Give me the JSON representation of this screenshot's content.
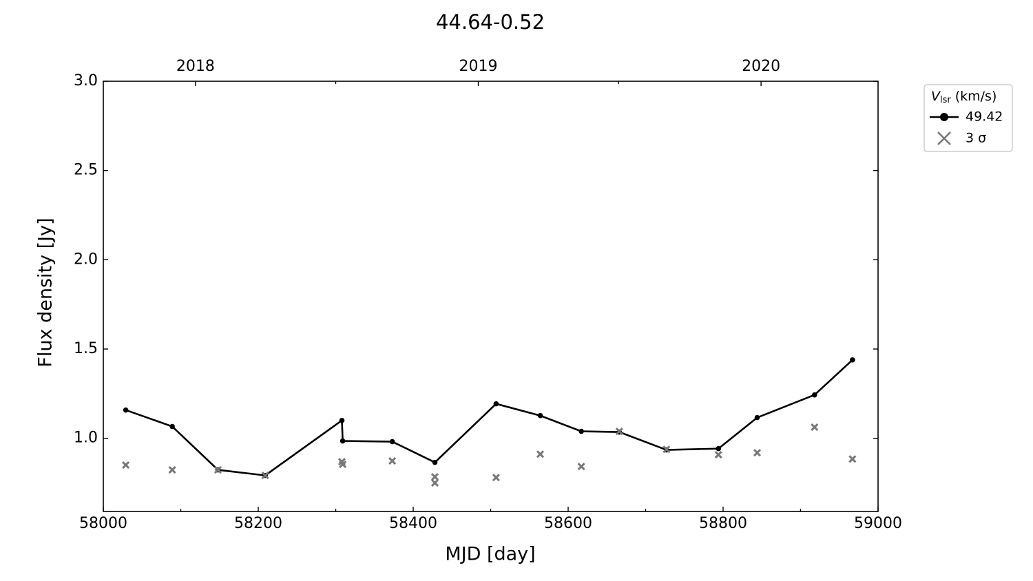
{
  "chart_data": {
    "type": "line",
    "title": "44.64-0.52",
    "xlabel": "MJD [day]",
    "ylabel": "Flux density [Jy]",
    "xlim": [
      58000,
      59000
    ],
    "xticks": [
      58000,
      58200,
      58400,
      58600,
      58800,
      59000
    ],
    "xminor_ticks": [
      58100,
      58300,
      58500,
      58700,
      58900
    ],
    "ylim": [
      0.59,
      3.0
    ],
    "yticks": [
      {
        "value": 1.0,
        "label": "1.0"
      },
      {
        "value": 1.5,
        "label": "1.5"
      },
      {
        "value": 2.0,
        "label": "2.0"
      },
      {
        "value": 2.5,
        "label": "2.5"
      },
      {
        "value": 3.0,
        "label": "3.0"
      }
    ],
    "x2ticks": [
      {
        "value": 58119,
        "label": "2018"
      },
      {
        "value": 58484,
        "label": "2019"
      },
      {
        "value": 58849,
        "label": "2020"
      }
    ],
    "x2minor_ticks": [
      58300,
      58665
    ],
    "legend_title": {
      "symbol": "V",
      "subscript": "lsr",
      "unit": "(km/s)"
    },
    "legend_position": "outside upper right",
    "series": [
      {
        "name": "49.42",
        "type": "line",
        "color": "#000000",
        "x": [
          58029,
          58089,
          58148,
          58209,
          58308,
          58309,
          58373,
          58428,
          58507,
          58564,
          58617,
          58666,
          58727,
          58794,
          58844,
          58918,
          58967
        ],
        "values": [
          1.158,
          1.066,
          0.823,
          0.792,
          1.1,
          0.985,
          0.981,
          0.865,
          1.193,
          1.127,
          1.039,
          1.035,
          0.935,
          0.942,
          1.116,
          1.243,
          1.439
        ]
      },
      {
        "name": "3 σ",
        "type": "scatter",
        "color": "#777777",
        "x": [
          58029,
          58089,
          58148,
          58209,
          58308,
          58309,
          58373,
          58428,
          58428,
          58507,
          58564,
          58617,
          58666,
          58727,
          58794,
          58844,
          58918,
          58967
        ],
        "values": [
          0.85,
          0.823,
          0.823,
          0.792,
          0.869,
          0.854,
          0.873,
          0.784,
          0.75,
          0.78,
          0.911,
          0.842,
          1.039,
          0.938,
          0.908,
          0.919,
          1.062,
          0.884
        ]
      }
    ]
  }
}
